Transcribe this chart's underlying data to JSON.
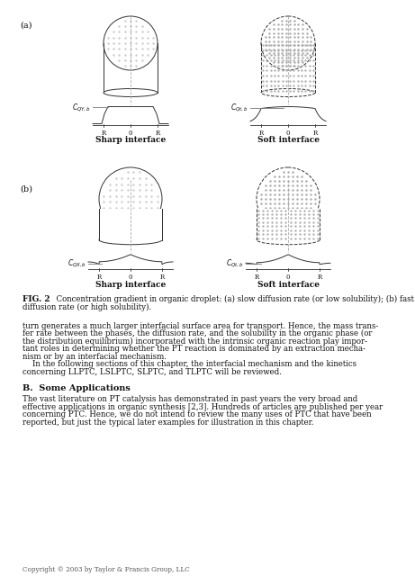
{
  "bg_color": "#ffffff",
  "fig_width": 4.61,
  "fig_height": 6.4,
  "label_a": "(a)",
  "label_b": "(b)",
  "sharp_label": "Sharp interface",
  "soft_label": "Soft interface",
  "caption_bold": "FIG. 2",
  "caption_text": "   Concentration gradient in organic droplet: (a) slow diffusion rate (or low solubility); (b) fast\ndiffusion rate (or high solubility).",
  "body_text_lines": [
    "turn generates a much larger interfacial surface area for transport. Hence, the mass trans-",
    "fer rate between the phases, the diffusion rate, and the solubility in the organic phase (or",
    "the distribution equilibrium) incorporated with the intrinsic organic reaction play impor-",
    "tant roles in determining whether the PT reaction is dominated by an extraction mecha-",
    "nism or by an interfacial mechanism.",
    "    In the following sections of this chapter, the interfacial mechanism and the kinetics",
    "concerning LLPTC, LSLPTC, SLPTC, and TLPTC will be reviewed."
  ],
  "section_bold": "B.",
  "section_title": "Some Applications",
  "section_text_lines": [
    "The vast literature on PT catalysis has demonstrated in past years the very broad and",
    "effective applications in organic synthesis [2,3]. Hundreds of articles are published per year",
    "concerning PTC. Hence, we do not intend to review the many uses of PTC that have been",
    "reported, but just the typical later examples for illustration in this chapter."
  ],
  "copyright_text": "Copyright © 2003 by Taylor & Francis Group, LLC"
}
